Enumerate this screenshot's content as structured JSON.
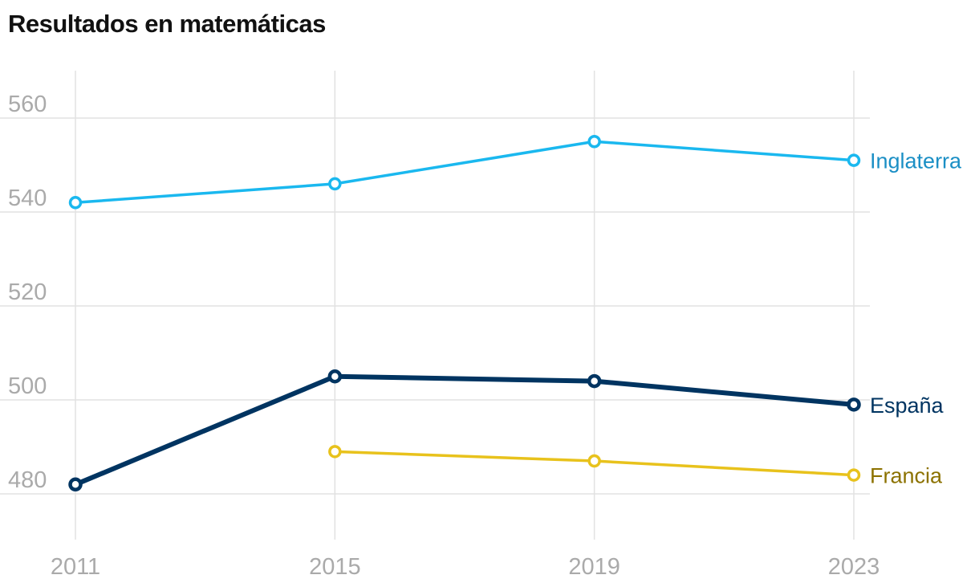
{
  "chart_data": {
    "type": "line",
    "title": "Resultados en matemáticas",
    "x": [
      "2011",
      "2015",
      "2019",
      "2023"
    ],
    "ylim": [
      470,
      570
    ],
    "yticks": [
      480,
      500,
      520,
      540,
      560
    ],
    "grid": true,
    "series": [
      {
        "name": "Inglaterra",
        "color": "#1ab8ef",
        "label_color": "#1b8fc5",
        "values": [
          542,
          546,
          555,
          551
        ]
      },
      {
        "name": "España",
        "color": "#003461",
        "label_color": "#003461",
        "values": [
          482,
          505,
          504,
          499
        ]
      },
      {
        "name": "Francia",
        "color": "#e8c21c",
        "label_color": "#8c7200",
        "values": [
          null,
          489,
          487,
          484
        ]
      }
    ]
  }
}
